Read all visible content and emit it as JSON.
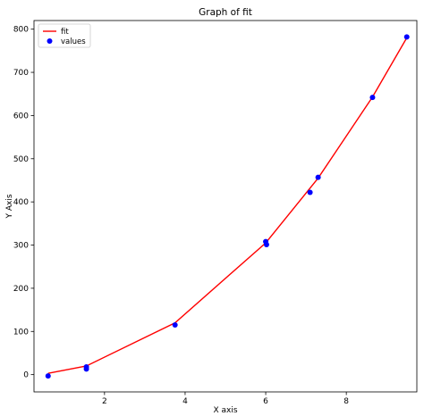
{
  "chart_data": {
    "type": "line",
    "title": "Graph of fit",
    "xlabel": "X axis",
    "ylabel": "Y Axis",
    "xlim": [
      0.25,
      9.75
    ],
    "ylim": [
      -40,
      820
    ],
    "xticks": [
      2,
      4,
      6,
      8
    ],
    "yticks": [
      0,
      100,
      200,
      300,
      400,
      500,
      600,
      700,
      800
    ],
    "grid": false,
    "legend": "top-left",
    "series": [
      {
        "name": "fit",
        "kind": "line",
        "color": "#ff0000",
        "x": [
          0.6,
          1.55,
          3.75,
          6.0,
          7.3,
          8.65,
          9.5
        ],
        "y": [
          3,
          20,
          120,
          305,
          455,
          643,
          780
        ]
      },
      {
        "name": "values",
        "kind": "scatter",
        "color": "#0000ff",
        "x": [
          0.6,
          1.55,
          1.55,
          3.75,
          6.0,
          6.02,
          7.1,
          7.3,
          8.65,
          9.5
        ],
        "y": [
          -3,
          18,
          13,
          115,
          308,
          301,
          422,
          457,
          642,
          782
        ]
      }
    ]
  }
}
